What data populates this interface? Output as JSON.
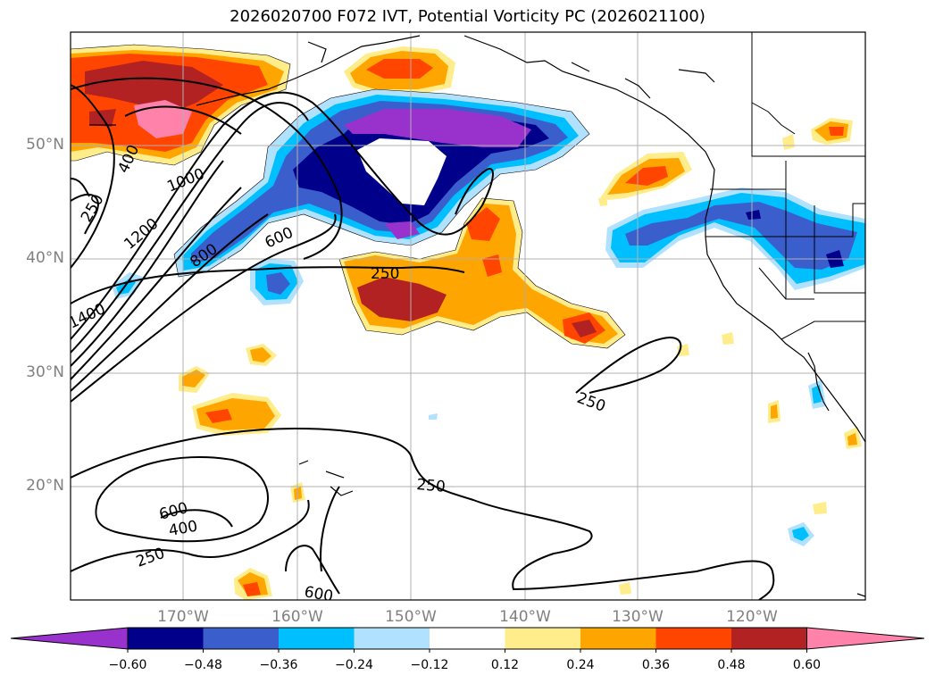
{
  "title": "2026020700 F072 IVT, Potential Vorticity PC (2026021100)",
  "map": {
    "lat_labels": [
      "50°N",
      "40°N",
      "30°N",
      "20°N"
    ],
    "lon_labels": [
      "170°W",
      "160°W",
      "150°W",
      "140°W",
      "130°W",
      "120°W"
    ],
    "contour_labels": [
      "250",
      "400",
      "1000",
      "1200",
      "800",
      "600",
      "250",
      "1400",
      "250",
      "250",
      "600",
      "400",
      "250",
      "600"
    ]
  },
  "colorbar": {
    "ticks": [
      "−0.60",
      "−0.48",
      "−0.36",
      "−0.24",
      "−0.12",
      "0.12",
      "0.24",
      "0.36",
      "0.48",
      "0.60"
    ],
    "colors": [
      "#9932cc",
      "#00008b",
      "#3a5fcd",
      "#00bfff",
      "#b0e2ff",
      "#ffffff",
      "#ffec8b",
      "#ffa500",
      "#ff4500",
      "#b22222",
      "#ff82ab"
    ]
  }
}
